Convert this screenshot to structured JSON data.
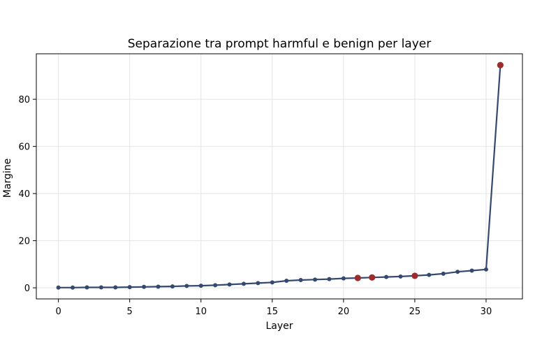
{
  "chart_data": {
    "type": "line",
    "title": "Separazione tra prompt harmful e benign per layer",
    "xlabel": "Layer",
    "ylabel": "Margine",
    "xlim": [
      -1.55,
      32.55
    ],
    "ylim": [
      -4.7,
      99.3
    ],
    "xticks": [
      0,
      5,
      10,
      15,
      20,
      25,
      30
    ],
    "yticks": [
      0,
      20,
      40,
      60,
      80
    ],
    "grid": true,
    "legend": "none",
    "series": [
      {
        "color": "#34496e",
        "x": [
          0,
          1,
          2,
          3,
          4,
          5,
          6,
          7,
          8,
          9,
          10,
          11,
          12,
          13,
          14,
          15,
          16,
          17,
          18,
          19,
          20,
          21,
          22,
          23,
          24,
          25,
          26,
          27,
          28,
          29,
          30,
          31
        ],
        "y": [
          0.1,
          0.1,
          0.2,
          0.2,
          0.2,
          0.3,
          0.4,
          0.5,
          0.6,
          0.8,
          0.9,
          1.1,
          1.4,
          1.7,
          2.0,
          2.3,
          3.0,
          3.3,
          3.5,
          3.7,
          4.0,
          4.2,
          4.4,
          4.6,
          4.8,
          5.1,
          5.5,
          6.0,
          6.8,
          7.3,
          7.8,
          94.5
        ]
      }
    ],
    "highlight_points": {
      "color": "#9b2d2d",
      "x": [
        21,
        22,
        25,
        31
      ],
      "y": [
        4.2,
        4.4,
        5.1,
        94.5
      ]
    }
  }
}
